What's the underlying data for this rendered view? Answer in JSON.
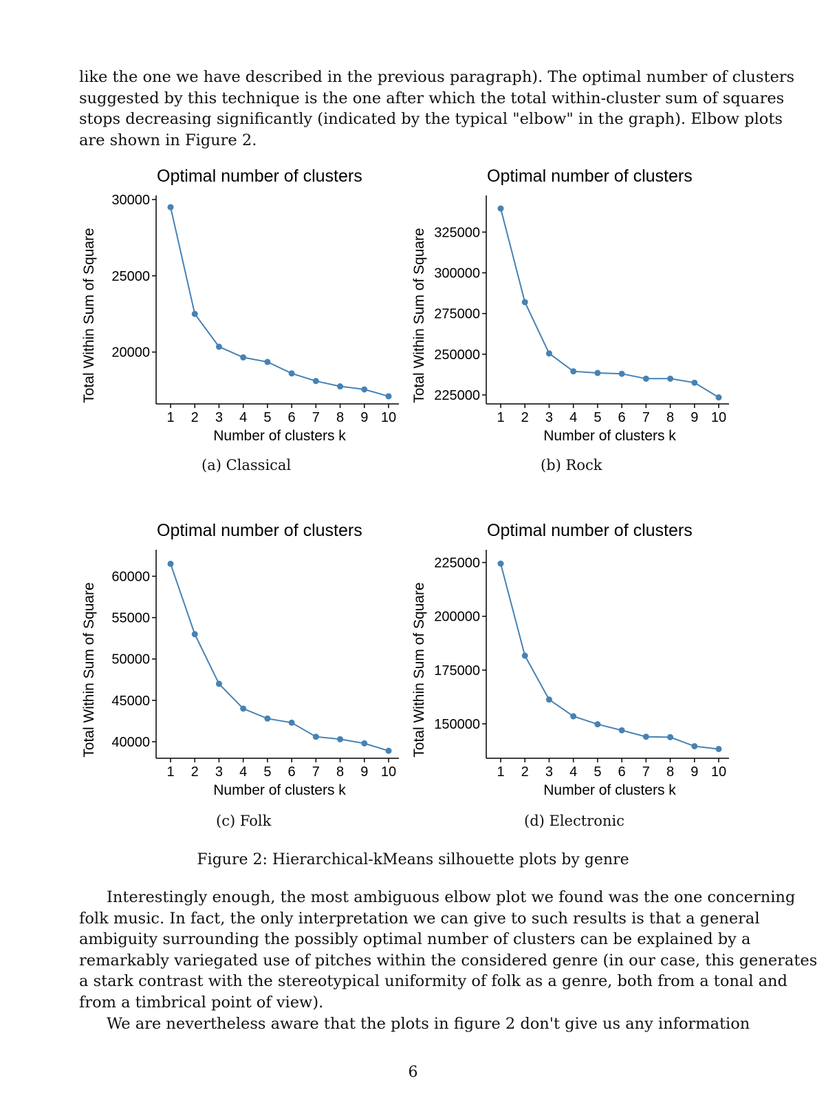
{
  "intro_lines": [
    "like the one we have described in the previous paragraph). The optimal number of clusters",
    "suggested by this technique is the one after which the total within-cluster sum of squares",
    "stops decreasing significantly (indicated by the typical \"elbow\" in the graph). Elbow plots",
    "are shown in Figure 2."
  ],
  "charts": [
    {
      "id": "classical",
      "caption": "(a) Classical",
      "chart_data": {
        "type": "line",
        "title": "Optimal number of clusters",
        "xlabel": "Number of clusters k",
        "ylabel": "Total Within Sum of Square",
        "x": [
          1,
          2,
          3,
          4,
          5,
          6,
          7,
          8,
          9,
          10
        ],
        "y": [
          29500,
          22500,
          20350,
          19650,
          19350,
          18600,
          18100,
          17750,
          17550,
          17100
        ],
        "yticks": [
          20000,
          25000,
          30000
        ],
        "ylim": [
          16600,
          30000
        ],
        "color": "#4682b4"
      }
    },
    {
      "id": "rock",
      "caption": "(b) Rock",
      "chart_data": {
        "type": "line",
        "title": "Optimal number of clusters",
        "xlabel": "Number of clusters k",
        "ylabel": "Total Within Sum of Square",
        "x": [
          1,
          2,
          3,
          4,
          5,
          6,
          7,
          8,
          9,
          10
        ],
        "y": [
          339500,
          282000,
          250500,
          239500,
          238500,
          238000,
          235000,
          235000,
          232500,
          223500
        ],
        "yticks": [
          225000,
          250000,
          275000,
          300000,
          325000
        ],
        "ylim": [
          219500,
          345000
        ],
        "color": "#4682b4"
      }
    },
    {
      "id": "folk",
      "caption": "(c) Folk",
      "chart_data": {
        "type": "line",
        "title": "Optimal number of clusters",
        "xlabel": "Number of clusters k",
        "ylabel": "Total Within Sum of Square",
        "x": [
          1,
          2,
          3,
          4,
          5,
          6,
          7,
          8,
          9,
          10
        ],
        "y": [
          61500,
          53000,
          47000,
          44000,
          42800,
          42300,
          40600,
          40300,
          39800,
          38900
        ],
        "yticks": [
          40000,
          45000,
          50000,
          55000,
          60000
        ],
        "ylim": [
          38000,
          62700
        ],
        "color": "#4682b4"
      }
    },
    {
      "id": "electronic",
      "caption": "(d) Electronic",
      "chart_data": {
        "type": "line",
        "title": "Optimal number of clusters",
        "xlabel": "Number of clusters k",
        "ylabel": "Total Within Sum of Square",
        "x": [
          1,
          2,
          3,
          4,
          5,
          6,
          7,
          8,
          9,
          10
        ],
        "y": [
          224500,
          181700,
          161300,
          153500,
          149800,
          147000,
          144000,
          143800,
          139600,
          138300
        ],
        "yticks": [
          150000,
          175000,
          200000,
          225000
        ],
        "ylim": [
          134000,
          229000
        ],
        "color": "#4682b4"
      }
    }
  ],
  "figure_caption": "Figure 2: Hierarchical-kMeans silhouette plots by genre",
  "body_lines": [
    "Interestingly enough, the most ambiguous elbow plot we found was the one concerning",
    "folk music. In fact, the only interpretation we can give to such results is that a general",
    "ambiguity surrounding the possibly optimal number of clusters can be explained by a",
    "remarkably variegated use of pitches within the considered genre (in our case, this generates",
    "a stark contrast with the stereotypical uniformity of folk as a genre, both from a tonal and",
    "from a timbrical point of view).",
    "We are nevertheless aware that the plots in figure 2 don't give us any information"
  ],
  "page_number": "6"
}
